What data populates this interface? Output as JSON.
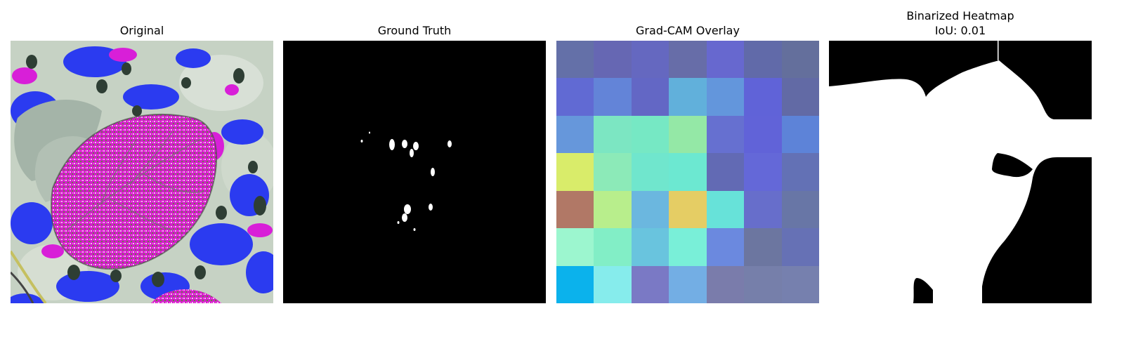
{
  "panels": [
    {
      "title": "Original"
    },
    {
      "title": "Ground Truth"
    },
    {
      "title": "Grad-CAM Overlay"
    },
    {
      "title": "Binarized Heatmap",
      "subtitle": "IoU: 0.01"
    }
  ],
  "gradcam_grid": [
    [
      "#6470a8",
      "#6667b3",
      "#6568c0",
      "#676da8",
      "#6768cf",
      "#616aa9",
      "#646f9c"
    ],
    [
      "#616ad3",
      "#6384d8",
      "#6367c5",
      "#61b0db",
      "#6396dc",
      "#6063d8",
      "#626aa5"
    ],
    [
      "#6697db",
      "#7ce6c2",
      "#76e8c4",
      "#94e8a6",
      "#6670d0",
      "#6163d8",
      "#5d83d8"
    ],
    [
      "#d9ec6a",
      "#8ceab8",
      "#70e6cd",
      "#6ce8d1",
      "#626ab4",
      "#6468d8",
      "#6371b5"
    ],
    [
      "#b17866",
      "#b8ee8c",
      "#6bb7df",
      "#e5cd64",
      "#67e2d9",
      "#676ecb",
      "#6876a6"
    ],
    [
      "#9cf6cf",
      "#82eec6",
      "#69c4de",
      "#79efd8",
      "#6b89df",
      "#6c76a0",
      "#6671b5"
    ],
    [
      "#0bb2ec",
      "#86ecec",
      "#7a79c5",
      "#73aee4",
      "#7a7cab",
      "#767faa",
      "#7680ae"
    ]
  ]
}
